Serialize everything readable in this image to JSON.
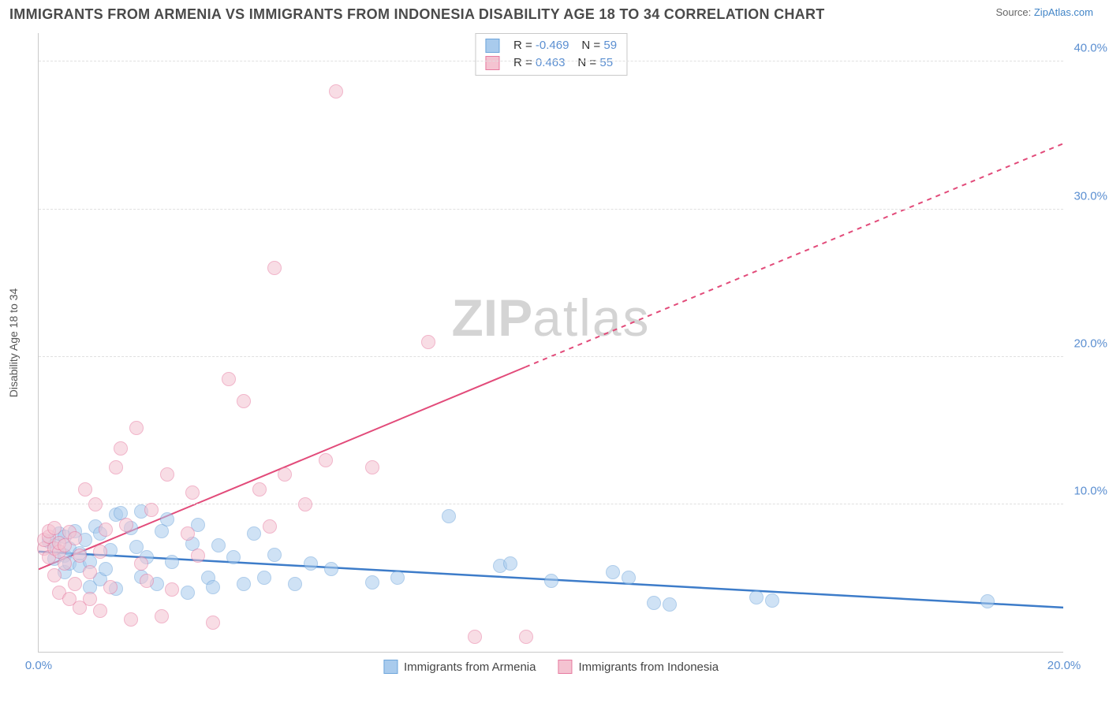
{
  "header": {
    "title": "IMMIGRANTS FROM ARMENIA VS IMMIGRANTS FROM INDONESIA DISABILITY AGE 18 TO 34 CORRELATION CHART",
    "source_prefix": "Source: ",
    "source_name": "ZipAtlas.com"
  },
  "chart": {
    "type": "scatter",
    "ylabel": "Disability Age 18 to 34",
    "xlim": [
      0,
      20
    ],
    "ylim": [
      0,
      42
    ],
    "xticks": [
      {
        "v": 0,
        "label": "0.0%"
      },
      {
        "v": 20,
        "label": "20.0%"
      }
    ],
    "yticks": [
      {
        "v": 10,
        "label": "10.0%"
      },
      {
        "v": 20,
        "label": "20.0%"
      },
      {
        "v": 30,
        "label": "30.0%"
      },
      {
        "v": 40,
        "label": "40.0%"
      }
    ],
    "grid_color": "#e0e0e0",
    "axis_color": "#c9c9c9",
    "tick_color": "#5b8fd1",
    "background_color": "#ffffff",
    "watermark": "ZIPatlas",
    "point_radius": 9,
    "point_opacity": 0.55,
    "series": [
      {
        "name": "Immigrants from Armenia",
        "color_fill": "#a9cbed",
        "color_stroke": "#6ea5db",
        "r_label": "R =",
        "r_value": "-0.469",
        "n_label": "N =",
        "n_value": "59",
        "trend": {
          "x1": 0,
          "y1": 6.8,
          "x2": 20,
          "y2": 3.0,
          "color": "#3d7cc9",
          "width": 2.5,
          "solid_until_x": 20
        },
        "points": [
          [
            0.2,
            7.5
          ],
          [
            0.3,
            7.2
          ],
          [
            0.3,
            6.3
          ],
          [
            0.4,
            8.0
          ],
          [
            0.5,
            6.5
          ],
          [
            0.5,
            7.8
          ],
          [
            0.5,
            5.4
          ],
          [
            0.6,
            6.0
          ],
          [
            0.6,
            7.0
          ],
          [
            0.7,
            8.2
          ],
          [
            0.8,
            6.7
          ],
          [
            0.8,
            5.8
          ],
          [
            0.9,
            7.6
          ],
          [
            1.0,
            4.4
          ],
          [
            1.0,
            6.1
          ],
          [
            1.1,
            8.5
          ],
          [
            1.2,
            4.9
          ],
          [
            1.2,
            8.0
          ],
          [
            1.3,
            5.6
          ],
          [
            1.4,
            6.9
          ],
          [
            1.5,
            9.3
          ],
          [
            1.5,
            4.3
          ],
          [
            1.6,
            9.4
          ],
          [
            1.8,
            8.4
          ],
          [
            1.9,
            7.1
          ],
          [
            2.0,
            9.5
          ],
          [
            2.0,
            5.1
          ],
          [
            2.1,
            6.4
          ],
          [
            2.3,
            4.6
          ],
          [
            2.4,
            8.2
          ],
          [
            2.5,
            9.0
          ],
          [
            2.6,
            6.1
          ],
          [
            2.9,
            4.0
          ],
          [
            3.0,
            7.3
          ],
          [
            3.1,
            8.6
          ],
          [
            3.3,
            5.0
          ],
          [
            3.4,
            4.4
          ],
          [
            3.5,
            7.2
          ],
          [
            3.8,
            6.4
          ],
          [
            4.0,
            4.6
          ],
          [
            4.2,
            8.0
          ],
          [
            4.4,
            5.0
          ],
          [
            4.6,
            6.6
          ],
          [
            5.0,
            4.6
          ],
          [
            5.3,
            6.0
          ],
          [
            5.7,
            5.6
          ],
          [
            6.5,
            4.7
          ],
          [
            7.0,
            5.0
          ],
          [
            8.0,
            9.2
          ],
          [
            9.0,
            5.8
          ],
          [
            9.2,
            6.0
          ],
          [
            10.0,
            4.8
          ],
          [
            11.2,
            5.4
          ],
          [
            11.5,
            5.0
          ],
          [
            12.0,
            3.3
          ],
          [
            12.3,
            3.2
          ],
          [
            14.0,
            3.7
          ],
          [
            14.3,
            3.5
          ],
          [
            18.5,
            3.4
          ]
        ]
      },
      {
        "name": "Immigrants from Indonesia",
        "color_fill": "#f4c3d1",
        "color_stroke": "#e77aa0",
        "r_label": "R =",
        "r_value": "0.463",
        "n_label": "N =",
        "n_value": "55",
        "trend": {
          "x1": 0,
          "y1": 5.6,
          "x2": 20,
          "y2": 34.5,
          "color": "#e24b7a",
          "width": 2,
          "solid_until_x": 9.5
        },
        "points": [
          [
            0.1,
            7.0
          ],
          [
            0.1,
            7.6
          ],
          [
            0.2,
            7.8
          ],
          [
            0.2,
            6.4
          ],
          [
            0.2,
            8.2
          ],
          [
            0.3,
            7.0
          ],
          [
            0.3,
            5.2
          ],
          [
            0.3,
            8.4
          ],
          [
            0.4,
            6.8
          ],
          [
            0.4,
            7.4
          ],
          [
            0.4,
            4.0
          ],
          [
            0.5,
            6.0
          ],
          [
            0.5,
            7.2
          ],
          [
            0.6,
            3.6
          ],
          [
            0.6,
            8.1
          ],
          [
            0.7,
            4.6
          ],
          [
            0.7,
            7.7
          ],
          [
            0.8,
            3.0
          ],
          [
            0.8,
            6.5
          ],
          [
            0.9,
            11.0
          ],
          [
            1.0,
            3.6
          ],
          [
            1.0,
            5.4
          ],
          [
            1.1,
            10.0
          ],
          [
            1.2,
            6.8
          ],
          [
            1.2,
            2.8
          ],
          [
            1.3,
            8.3
          ],
          [
            1.4,
            4.4
          ],
          [
            1.5,
            12.5
          ],
          [
            1.6,
            13.8
          ],
          [
            1.7,
            8.6
          ],
          [
            1.8,
            2.2
          ],
          [
            1.9,
            15.2
          ],
          [
            2.0,
            6.0
          ],
          [
            2.1,
            4.8
          ],
          [
            2.2,
            9.6
          ],
          [
            2.4,
            2.4
          ],
          [
            2.5,
            12.0
          ],
          [
            2.6,
            4.2
          ],
          [
            2.9,
            8.0
          ],
          [
            3.0,
            10.8
          ],
          [
            3.1,
            6.5
          ],
          [
            3.4,
            2.0
          ],
          [
            3.7,
            18.5
          ],
          [
            4.0,
            17.0
          ],
          [
            4.3,
            11.0
          ],
          [
            4.5,
            8.5
          ],
          [
            4.6,
            26.0
          ],
          [
            4.8,
            12.0
          ],
          [
            5.2,
            10.0
          ],
          [
            5.6,
            13.0
          ],
          [
            5.8,
            38.0
          ],
          [
            6.5,
            12.5
          ],
          [
            7.6,
            21.0
          ],
          [
            8.5,
            1.0
          ],
          [
            9.5,
            1.0
          ]
        ]
      }
    ],
    "legend_bottom": [
      {
        "label": "Immigrants from Armenia",
        "fill": "#a9cbed",
        "stroke": "#6ea5db"
      },
      {
        "label": "Immigrants from Indonesia",
        "fill": "#f4c3d1",
        "stroke": "#e77aa0"
      }
    ]
  }
}
